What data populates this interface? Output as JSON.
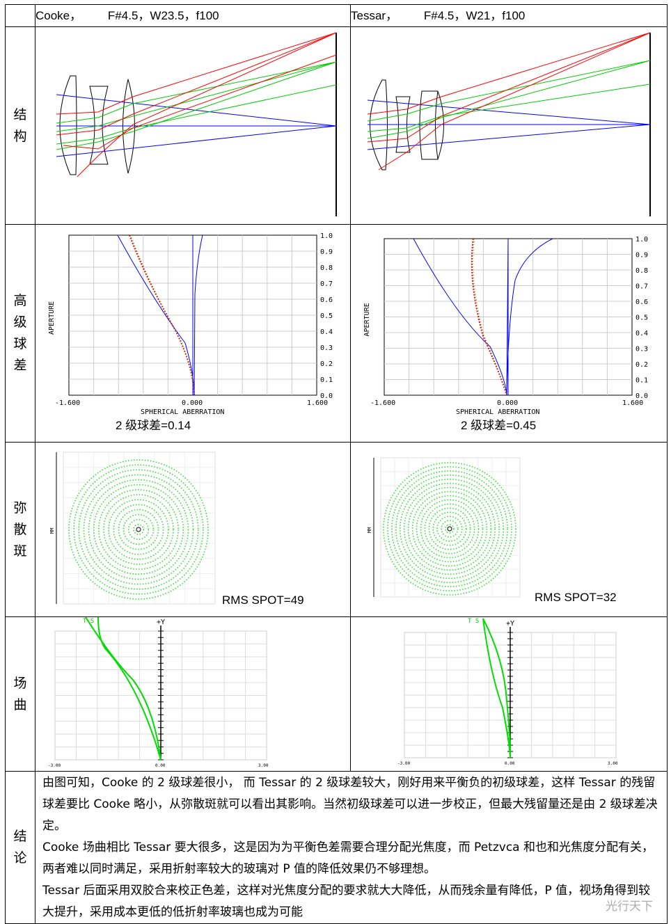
{
  "header": {
    "left": "Cooke，        F#4.5，W23.5，f100",
    "right": "Tessar，        F#4.5，W21，f100"
  },
  "rows": {
    "structure": [
      "结",
      "构"
    ],
    "spherical": [
      "高",
      "级",
      "球",
      "差"
    ],
    "spot": [
      "弥",
      "散",
      "斑"
    ],
    "field": [
      "场",
      "曲"
    ],
    "conclusion": [
      "结",
      "论"
    ]
  },
  "spherical_plot": {
    "xlabel": "SPHERICAL ABERRATION",
    "ylabel": "APERTURE",
    "xticks": [
      "-1.600",
      "0.000",
      "1.600"
    ],
    "yticks": [
      "1.0",
      "0.9",
      "0.8",
      "0.7",
      "0.6",
      "0.5",
      "0.4",
      "0.3",
      "0.2",
      "0.1",
      "0.0"
    ],
    "left_caption": "2 级球差=0.14",
    "right_caption": "2 级球差=0.45"
  },
  "spot": {
    "axis_label": "MM",
    "left_caption": "RMS SPOT=49",
    "right_caption": "RMS SPOT=32"
  },
  "field_plot": {
    "left_legend": "T S",
    "right_legend": "T S",
    "y_label": "+Y",
    "xticks": [
      "-3.00",
      "0.00",
      "3.00"
    ]
  },
  "conclusion": {
    "p1": "由图可知，Cooke 的 2 级球差很小，  而 Tessar 的 2 级球差较大，刚好用来平衡负的初级球差，这样 Tessar 的残留球差要比 Cooke 略小，从弥散斑就可以看出其影响。当然初级球差可以进一步校正，但最大残留量还是由 2 级球差决定。",
    "p2": "Cooke 场曲相比 Tessar 要大很多，这是因为为平衡色差需要合理分配光焦度，而 Petzvca 和也和光焦度分配有关，两者难以同时满足，采用折射率较大的玻璃对 P 值的降低效果仍不够理想。",
    "p3": "Tessar  后面采用双胶合来校正色差，这样对光焦度分配的要求就大大降低，从而残余量有降低，P 值，视场角得到较大提升，采用成本更低的低折射率玻璃也成为可能",
    "watermark": "光行天下"
  },
  "colors": {
    "ray_blue": "#0000ff",
    "ray_green": "#00cc00",
    "ray_red": "#ff0000",
    "grid": "#cccccc",
    "spot_green": "#33dd33"
  }
}
